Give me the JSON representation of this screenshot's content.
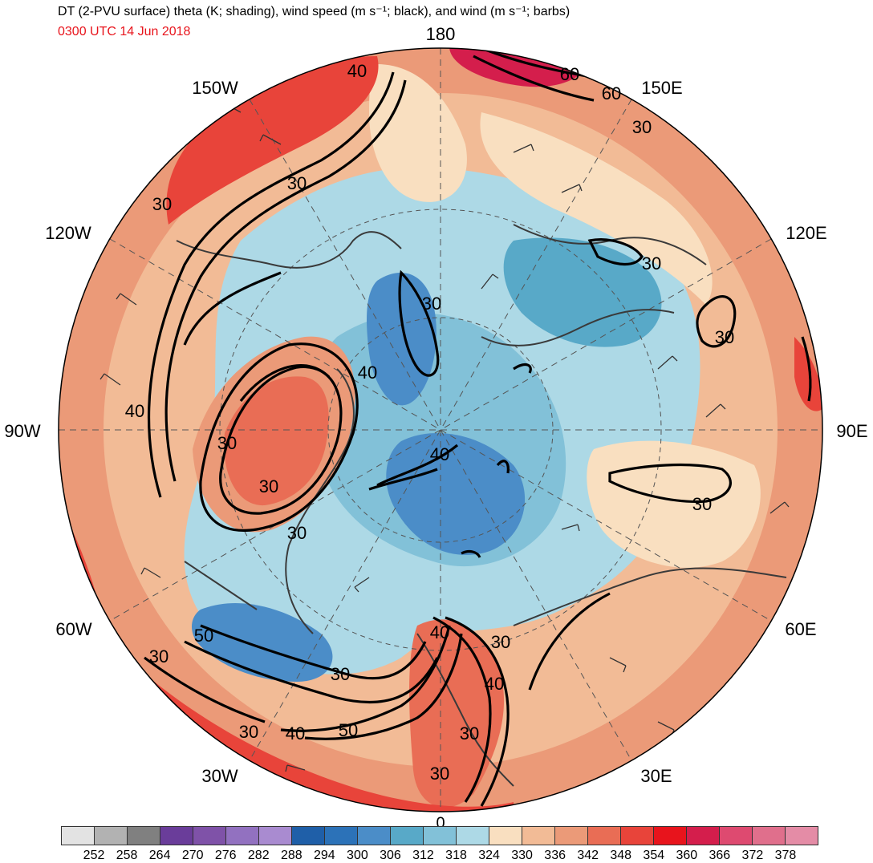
{
  "title": "DT (2-PVU surface) theta (K; shading), wind speed (m s⁻¹; black), and wind (m s⁻¹; barbs)",
  "valid_time": "0300 UTC 14 Jun 2018",
  "longitude_labels": [
    "180",
    "150E",
    "120E",
    "90E",
    "60E",
    "30E",
    "0",
    "30W",
    "60W",
    "90W",
    "120W",
    "150W"
  ],
  "contour_labels": [
    "60",
    "60",
    "30",
    "30",
    "40",
    "30",
    "30",
    "30",
    "40",
    "30",
    "30",
    "40",
    "30",
    "30",
    "40",
    "30",
    "50",
    "30",
    "30",
    "40",
    "50",
    "30",
    "40",
    "30",
    "30",
    "30",
    "40"
  ],
  "colorbar": {
    "colors": [
      "#e3e3e3",
      "#b2b2b2",
      "#808080",
      "#6a3d9a",
      "#7f52a8",
      "#9271c0",
      "#a98bd0",
      "#1f5fa8",
      "#2c72b8",
      "#4b8dc8",
      "#58a9c8",
      "#82c1d8",
      "#add9e6",
      "#f9dfc0",
      "#f2bb96",
      "#eb9a78",
      "#e96d55",
      "#e8443a",
      "#e8141c",
      "#d41e4c",
      "#de4a70",
      "#e06f8c",
      "#e48ca6"
    ],
    "tick_labels": [
      "252",
      "258",
      "264",
      "270",
      "276",
      "282",
      "288",
      "294",
      "300",
      "306",
      "312",
      "318",
      "324",
      "330",
      "336",
      "342",
      "348",
      "354",
      "360",
      "366",
      "372",
      "378"
    ]
  },
  "colors": {
    "ocean_blue": "#add9e6",
    "mid_blue": "#82c1d8",
    "deep_blue": "#4b8dc8",
    "cream": "#f9dfc0",
    "salmon": "#eb9a78",
    "red": "#e8443a",
    "crimson": "#d41e4c"
  }
}
